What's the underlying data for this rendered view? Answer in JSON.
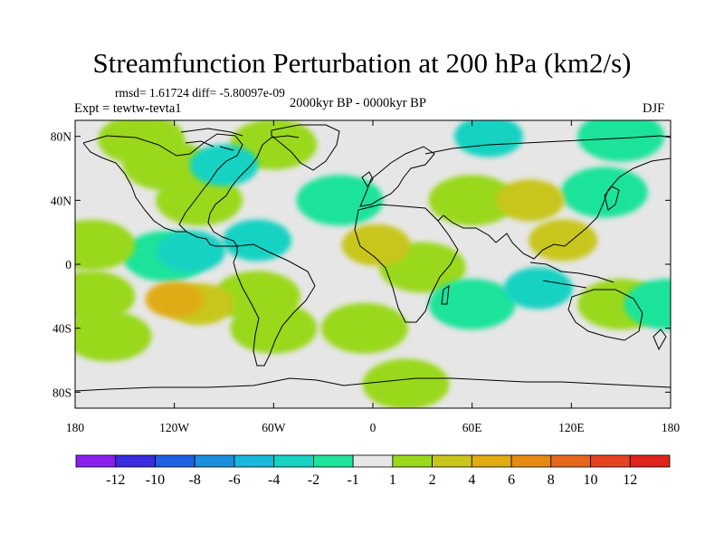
{
  "title": "Streamfunction Perturbation at 200 hPa (km2/s)",
  "stats": "rmsd= 1.61724 diff= -5.80097e-09",
  "experiment": "Expt = tewtw-tevta1",
  "period": "2000kyr BP - 0000kyr BP",
  "season": "DJF",
  "x_ticks": [
    "180",
    "120W",
    "60W",
    "0",
    "60E",
    "120E",
    "180"
  ],
  "y_ticks": [
    "80N",
    "40N",
    "0",
    "40S",
    "80S"
  ],
  "colorbar": {
    "labels": [
      "-12",
      "-10",
      "-8",
      "-6",
      "-4",
      "-2",
      "-1",
      "1",
      "2",
      "4",
      "6",
      "8",
      "10",
      "12"
    ],
    "colors": [
      "#8a1ff0",
      "#3a2ae0",
      "#1f5fe6",
      "#1a8fe0",
      "#17b8dc",
      "#18d2c2",
      "#1ee39a",
      "#e6e6e6",
      "#9ad81c",
      "#c8c61a",
      "#e0ac12",
      "#e68a12",
      "#e8661a",
      "#e64420",
      "#e0221c"
    ]
  },
  "chart_data": {
    "type": "heatmap",
    "title": "Streamfunction Perturbation at 200 hPa (km2/s)",
    "x_range": [
      -180,
      180
    ],
    "y_range": [
      -90,
      90
    ],
    "x_ticks": [
      "180",
      "120W",
      "60W",
      "0",
      "60E",
      "120E",
      "180"
    ],
    "y_ticks": [
      "80N",
      "40N",
      "0",
      "40S",
      "80S"
    ],
    "levels": [
      -12,
      -10,
      -8,
      -6,
      -4,
      -2,
      -1,
      1,
      2,
      4,
      6,
      8,
      10,
      12
    ],
    "features": [
      {
        "lon": -120,
        "lat": -22,
        "value": 6
      },
      {
        "lon": -105,
        "lat": -25,
        "value": 4
      },
      {
        "lon": -70,
        "lat": -20,
        "value": 2
      },
      {
        "lon": -60,
        "lat": -40,
        "value": 2
      },
      {
        "lon": -110,
        "lat": 8,
        "value": -4
      },
      {
        "lon": -70,
        "lat": 15,
        "value": -4
      },
      {
        "lon": -125,
        "lat": 5,
        "value": -2
      },
      {
        "lon": -90,
        "lat": 62,
        "value": -4
      },
      {
        "lon": -125,
        "lat": 62,
        "value": 2
      },
      {
        "lon": -140,
        "lat": 78,
        "value": 2
      },
      {
        "lon": -60,
        "lat": 75,
        "value": 2
      },
      {
        "lon": -105,
        "lat": 40,
        "value": 2
      },
      {
        "lon": -20,
        "lat": 40,
        "value": -2
      },
      {
        "lon": 2,
        "lat": 12,
        "value": 4
      },
      {
        "lon": 30,
        "lat": -2,
        "value": 2
      },
      {
        "lon": 70,
        "lat": 80,
        "value": -4
      },
      {
        "lon": 150,
        "lat": 80,
        "value": -2
      },
      {
        "lon": 95,
        "lat": 40,
        "value": 4
      },
      {
        "lon": 60,
        "lat": 40,
        "value": 2
      },
      {
        "lon": 140,
        "lat": 45,
        "value": -2
      },
      {
        "lon": 115,
        "lat": 15,
        "value": 4
      },
      {
        "lon": 100,
        "lat": -15,
        "value": -4
      },
      {
        "lon": 60,
        "lat": -25,
        "value": -2
      },
      {
        "lon": 150,
        "lat": -25,
        "value": 2
      },
      {
        "lon": 178,
        "lat": -25,
        "value": -2
      },
      {
        "lon": -170,
        "lat": 12,
        "value": 2
      },
      {
        "lon": -160,
        "lat": -45,
        "value": 2
      },
      {
        "lon": -170,
        "lat": -20,
        "value": 2
      },
      {
        "lon": -5,
        "lat": -40,
        "value": 2
      },
      {
        "lon": 20,
        "lat": -75,
        "value": 2
      }
    ]
  }
}
